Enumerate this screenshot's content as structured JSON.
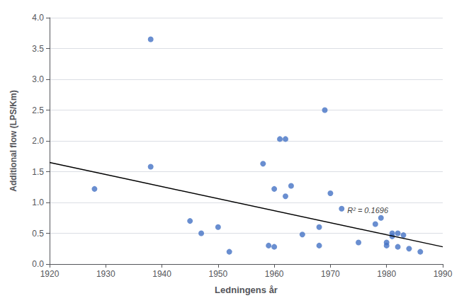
{
  "chart_data": {
    "type": "scatter",
    "x": [
      1928,
      1938,
      1938,
      1945,
      1947,
      1950,
      1952,
      1958,
      1959,
      1960,
      1960,
      1961,
      1962,
      1962,
      1963,
      1965,
      1968,
      1968,
      1969,
      1970,
      1972,
      1975,
      1978,
      1979,
      1980,
      1980,
      1981,
      1981,
      1982,
      1982,
      1983,
      1984,
      1986
    ],
    "values": [
      1.22,
      3.65,
      1.58,
      0.7,
      0.5,
      0.6,
      0.2,
      1.63,
      0.3,
      1.22,
      0.28,
      2.03,
      2.03,
      1.1,
      1.27,
      0.48,
      0.6,
      0.3,
      2.5,
      1.15,
      0.9,
      0.35,
      0.65,
      0.75,
      0.35,
      0.3,
      0.5,
      0.45,
      0.5,
      0.28,
      0.47,
      0.25,
      0.2
    ],
    "color": "#4472C4",
    "trendline": {
      "x": [
        1920,
        1990
      ],
      "values": [
        1.65,
        0.28
      ],
      "color": "#000000"
    },
    "annotations": [
      {
        "text": "R² = 0.1696",
        "x": 1973,
        "y": 0.87
      }
    ],
    "xlabel": "Ledningens år",
    "ylabel": "Additional flow (LPS/Km)",
    "xlim": [
      1920,
      1990
    ],
    "ylim": [
      0,
      4
    ],
    "xticks": [
      1920,
      1930,
      1940,
      1950,
      1960,
      1970,
      1980,
      1990
    ],
    "yticks": [
      {
        "value": 0,
        "label": "0.0"
      },
      0.5,
      {
        "value": 1.0,
        "label": "1.0"
      },
      1.5,
      {
        "value": 2.0,
        "label": "2.0"
      },
      2.5,
      {
        "value": 3.0,
        "label": "3.0"
      },
      3.5,
      {
        "value": 4.0,
        "label": "4.0"
      }
    ],
    "grid": "y"
  }
}
